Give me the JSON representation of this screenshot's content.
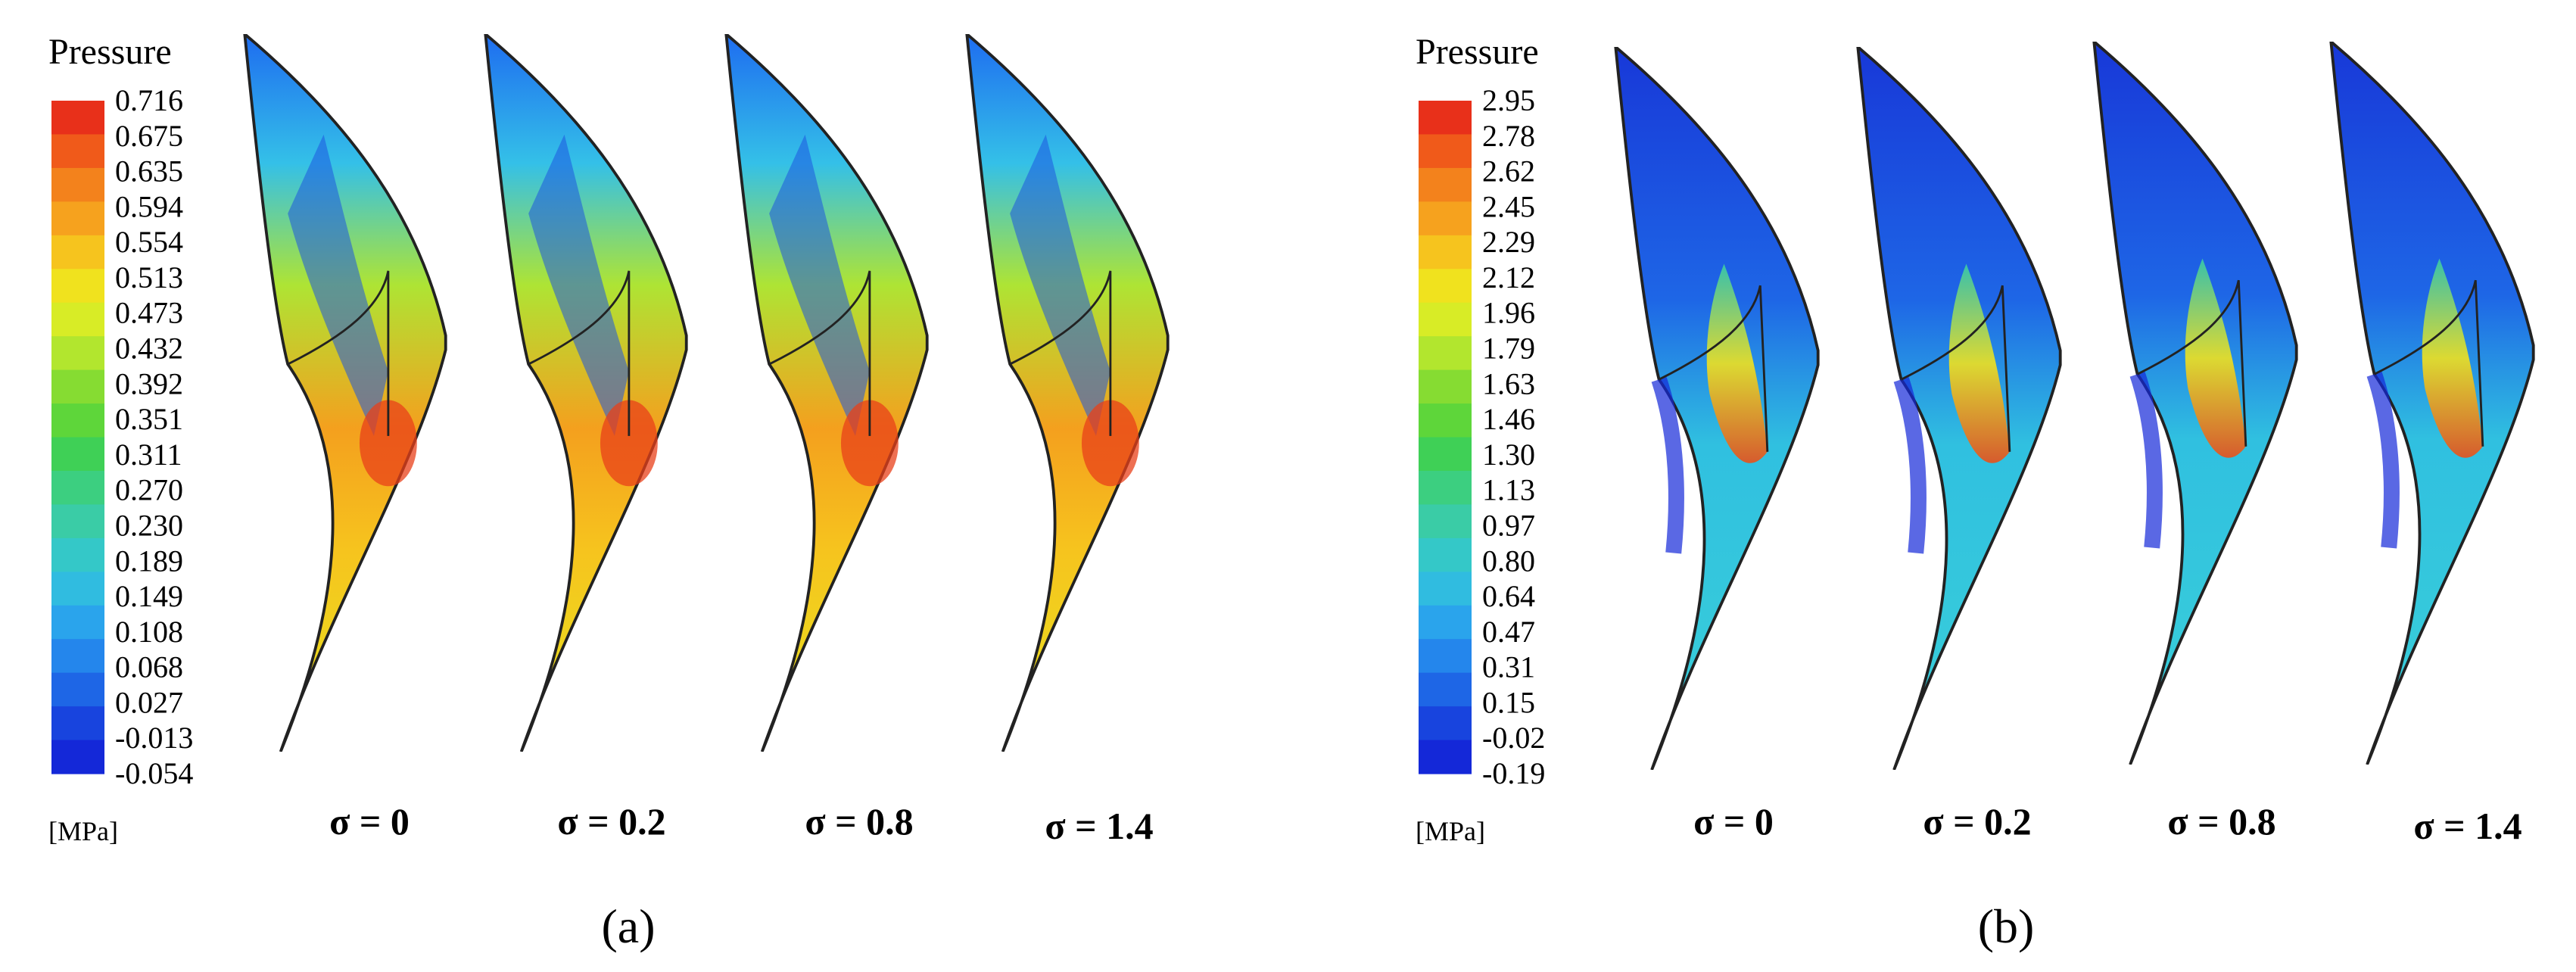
{
  "panels": [
    {
      "id": "a",
      "label": "(a)",
      "legend": {
        "title": "Pressure",
        "unit": "[MPa]",
        "ticks": [
          "0.716",
          "0.675",
          "0.635",
          "0.594",
          "0.554",
          "0.513",
          "0.473",
          "0.432",
          "0.392",
          "0.351",
          "0.311",
          "0.270",
          "0.230",
          "0.189",
          "0.149",
          "0.108",
          "0.068",
          "0.027",
          "-0.013",
          "-0.054"
        ],
        "colors": [
          "#e8301a",
          "#f05a1a",
          "#f3821c",
          "#f6a21e",
          "#f6c41e",
          "#f0e21e",
          "#d8ec26",
          "#b2e62e",
          "#86dc32",
          "#5ed63a",
          "#3fd056",
          "#3ccf80",
          "#3acca6",
          "#34c8c8",
          "#30bce0",
          "#2aa4ec",
          "#2486ec",
          "#1e66e6",
          "#1844de",
          "#1428d8"
        ]
      },
      "sigma_labels": [
        "σ = 0",
        "σ = 0.2",
        "σ = 0.8",
        "σ = 1.4"
      ]
    },
    {
      "id": "b",
      "label": "(b)",
      "legend": {
        "title": "Pressure",
        "unit": "[MPa]",
        "ticks": [
          "2.95",
          "2.78",
          "2.62",
          "2.45",
          "2.29",
          "2.12",
          "1.96",
          "1.79",
          "1.63",
          "1.46",
          "1.30",
          "1.13",
          "0.97",
          "0.80",
          "0.64",
          "0.47",
          "0.31",
          "0.15",
          "-0.02",
          "-0.19"
        ],
        "colors": [
          "#e8301a",
          "#f05a1a",
          "#f3821c",
          "#f6a21e",
          "#f6c41e",
          "#f0e21e",
          "#d8ec26",
          "#b2e62e",
          "#86dc32",
          "#5ed63a",
          "#3fd056",
          "#3ccf80",
          "#3acca6",
          "#34c8c8",
          "#30bce0",
          "#2aa4ec",
          "#2486ec",
          "#1e66e6",
          "#1844de",
          "#1428d8"
        ]
      },
      "sigma_labels": [
        "σ = 0",
        "σ = 0.2",
        "σ = 0.8",
        "σ = 1.4"
      ]
    }
  ]
}
